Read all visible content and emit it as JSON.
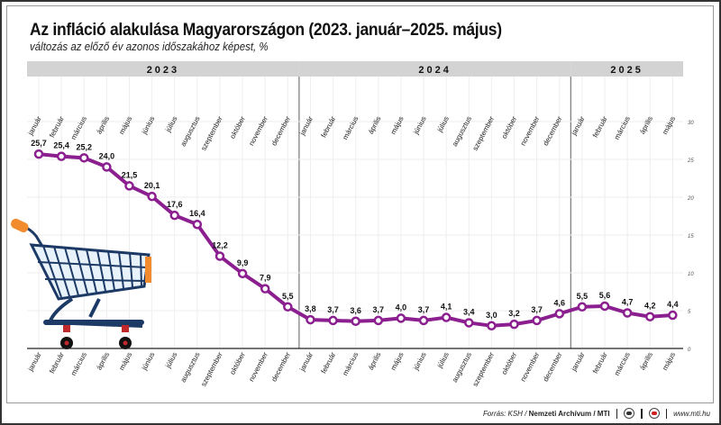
{
  "title": "Az infláció alakulása Magyarországon (2023. január–2025. május)",
  "subtitle": "változás az előző év azonos időszakához képest, %",
  "footer": {
    "source_prefix": "Forrás: KSH /",
    "source_bold": "Nemzeti Archívum / MTI",
    "url": "www.mti.hu"
  },
  "colors": {
    "line": "#8b1f8f",
    "year_band": "#d3d3d3",
    "cart_orange": "#f28a2e",
    "cart_blue": "#1d3a66"
  },
  "chart_data": {
    "type": "line",
    "title": "Az infláció alakulása Magyarországon (2023. január–2025. május)",
    "subtitle": "változás az előző év azonos időszakához képest, %",
    "xlabel": "",
    "ylabel": "%",
    "ylim": [
      0,
      30
    ],
    "yticks": [
      0,
      5,
      10,
      15,
      20,
      25,
      30
    ],
    "grid": true,
    "years": [
      {
        "label": "2023",
        "months": 12
      },
      {
        "label": "2024",
        "months": 12
      },
      {
        "label": "2025",
        "months": 5
      }
    ],
    "categories": [
      "január",
      "február",
      "március",
      "április",
      "május",
      "június",
      "július",
      "augusztus",
      "szeptember",
      "október",
      "november",
      "december",
      "január",
      "február",
      "március",
      "április",
      "május",
      "június",
      "július",
      "augusztus",
      "szeptember",
      "október",
      "november",
      "december",
      "január",
      "február",
      "március",
      "április",
      "május"
    ],
    "series": [
      {
        "name": "Infláció",
        "values": [
          25.7,
          25.4,
          25.2,
          24.0,
          21.5,
          20.1,
          17.6,
          16.4,
          12.2,
          9.9,
          7.9,
          5.5,
          3.8,
          3.7,
          3.6,
          3.7,
          4.0,
          3.7,
          4.1,
          3.4,
          3.0,
          3.2,
          3.7,
          4.6,
          5.5,
          5.6,
          4.7,
          4.2,
          4.4
        ],
        "labels": [
          "25,7",
          "25,4",
          "25,2",
          "24,0",
          "21,5",
          "20,1",
          "17,6",
          "16,4",
          "12,2",
          "9,9",
          "7,9",
          "5,5",
          "3,8",
          "3,7",
          "3,6",
          "3,7",
          "4,0",
          "3,7",
          "4,1",
          "3,4",
          "3,0",
          "3,2",
          "3,7",
          "4,6",
          "5,5",
          "5,6",
          "4,7",
          "4,2",
          "4,4"
        ]
      }
    ]
  }
}
